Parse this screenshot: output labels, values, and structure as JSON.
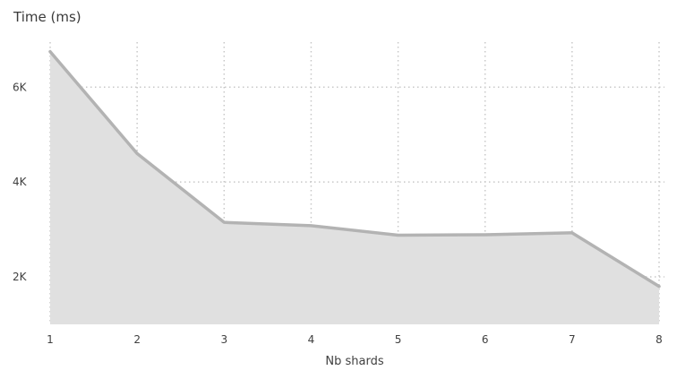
{
  "chart_data": {
    "type": "area",
    "ylabel": "Time (ms)",
    "xlabel": "Nb shards",
    "x": [
      1,
      2,
      3,
      4,
      5,
      6,
      7,
      8
    ],
    "series": [
      {
        "values": [
          6750,
          4600,
          3150,
          3080,
          2880,
          2890,
          2930,
          1800
        ]
      }
    ],
    "x_ticks": [
      "1",
      "2",
      "3",
      "4",
      "5",
      "6",
      "7",
      "8"
    ],
    "y_ticks": [
      {
        "value": 2000,
        "label": "2K"
      },
      {
        "value": 4000,
        "label": "4K"
      },
      {
        "value": 6000,
        "label": "6K"
      }
    ],
    "ylim": [
      1000,
      6950
    ],
    "grid": true,
    "colors": {
      "line": "#b3b3b3",
      "fill": "#e0e0e0",
      "grid": "#c8c8c8",
      "text": "#404040"
    }
  }
}
